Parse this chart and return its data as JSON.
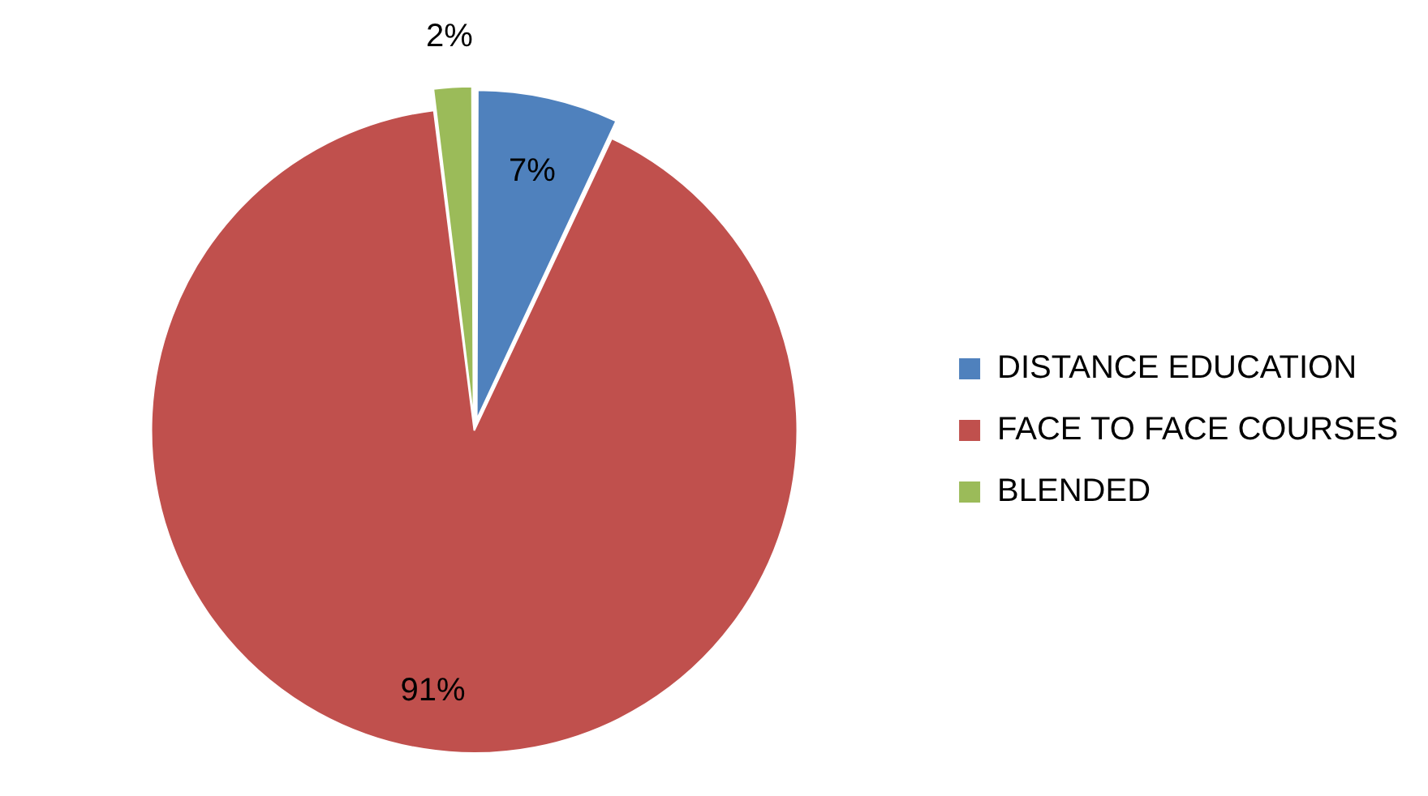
{
  "chart_data": {
    "type": "pie",
    "categories": [
      "DISTANCE EDUCATION",
      "FACE TO FACE COURSES",
      "BLENDED"
    ],
    "values": [
      7,
      91,
      2
    ],
    "value_labels": [
      "7%",
      "91%",
      "2%"
    ],
    "colors": [
      "#4f81bd",
      "#c0504d",
      "#9bbb59"
    ],
    "legend": "right"
  }
}
